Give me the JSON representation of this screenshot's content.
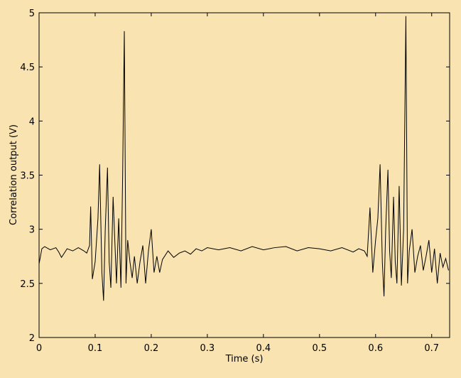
{
  "chart_data": {
    "type": "line",
    "xlabel": "Time (s)",
    "ylabel": "Correlation output (V)",
    "x": [
      0,
      0.005,
      0.01,
      0.02,
      0.03,
      0.035,
      0.04,
      0.05,
      0.06,
      0.07,
      0.08,
      0.085,
      0.09,
      0.092,
      0.095,
      0.1,
      0.105,
      0.108,
      0.112,
      0.115,
      0.118,
      0.122,
      0.125,
      0.128,
      0.132,
      0.135,
      0.138,
      0.142,
      0.146,
      0.149,
      0.152,
      0.155,
      0.158,
      0.162,
      0.166,
      0.17,
      0.175,
      0.18,
      0.185,
      0.19,
      0.195,
      0.2,
      0.205,
      0.21,
      0.215,
      0.22,
      0.23,
      0.24,
      0.25,
      0.26,
      0.27,
      0.28,
      0.29,
      0.3,
      0.32,
      0.34,
      0.36,
      0.38,
      0.4,
      0.42,
      0.44,
      0.46,
      0.48,
      0.5,
      0.52,
      0.54,
      0.56,
      0.57,
      0.58,
      0.585,
      0.59,
      0.595,
      0.6,
      0.604,
      0.608,
      0.612,
      0.615,
      0.618,
      0.622,
      0.625,
      0.628,
      0.632,
      0.635,
      0.638,
      0.642,
      0.646,
      0.65,
      0.654,
      0.657,
      0.66,
      0.665,
      0.67,
      0.675,
      0.68,
      0.685,
      0.69,
      0.695,
      0.7,
      0.705,
      0.71,
      0.715,
      0.72,
      0.725,
      0.73
    ],
    "values": [
      2.68,
      2.82,
      2.84,
      2.81,
      2.83,
      2.79,
      2.74,
      2.82,
      2.8,
      2.83,
      2.8,
      2.78,
      2.85,
      3.21,
      2.54,
      2.7,
      3.1,
      3.6,
      2.6,
      2.34,
      3.0,
      3.57,
      2.7,
      2.46,
      3.3,
      2.9,
      2.5,
      3.1,
      2.46,
      3.5,
      4.83,
      2.5,
      2.9,
      2.7,
      2.55,
      2.75,
      2.5,
      2.7,
      2.85,
      2.5,
      2.8,
      3.0,
      2.6,
      2.75,
      2.6,
      2.72,
      2.8,
      2.74,
      2.78,
      2.8,
      2.77,
      2.82,
      2.8,
      2.83,
      2.81,
      2.83,
      2.8,
      2.84,
      2.81,
      2.83,
      2.84,
      2.8,
      2.83,
      2.82,
      2.8,
      2.83,
      2.79,
      2.82,
      2.8,
      2.75,
      3.2,
      2.6,
      2.9,
      3.1,
      3.6,
      2.7,
      2.38,
      3.0,
      3.55,
      2.8,
      2.55,
      3.3,
      2.7,
      2.5,
      3.4,
      2.48,
      3.0,
      4.97,
      2.5,
      2.8,
      3.0,
      2.6,
      2.75,
      2.85,
      2.62,
      2.75,
      2.9,
      2.6,
      2.82,
      2.5,
      2.78,
      2.65,
      2.73,
      2.62
    ],
    "color": "#000000",
    "xlim": [
      0,
      0.732
    ],
    "xticks": [
      0,
      0.1,
      0.2,
      0.3,
      0.4,
      0.5,
      0.6,
      0.7
    ],
    "ylim": [
      2,
      5
    ],
    "yticks": [
      2,
      2.5,
      3,
      3.5,
      4,
      4.5,
      5
    ]
  }
}
